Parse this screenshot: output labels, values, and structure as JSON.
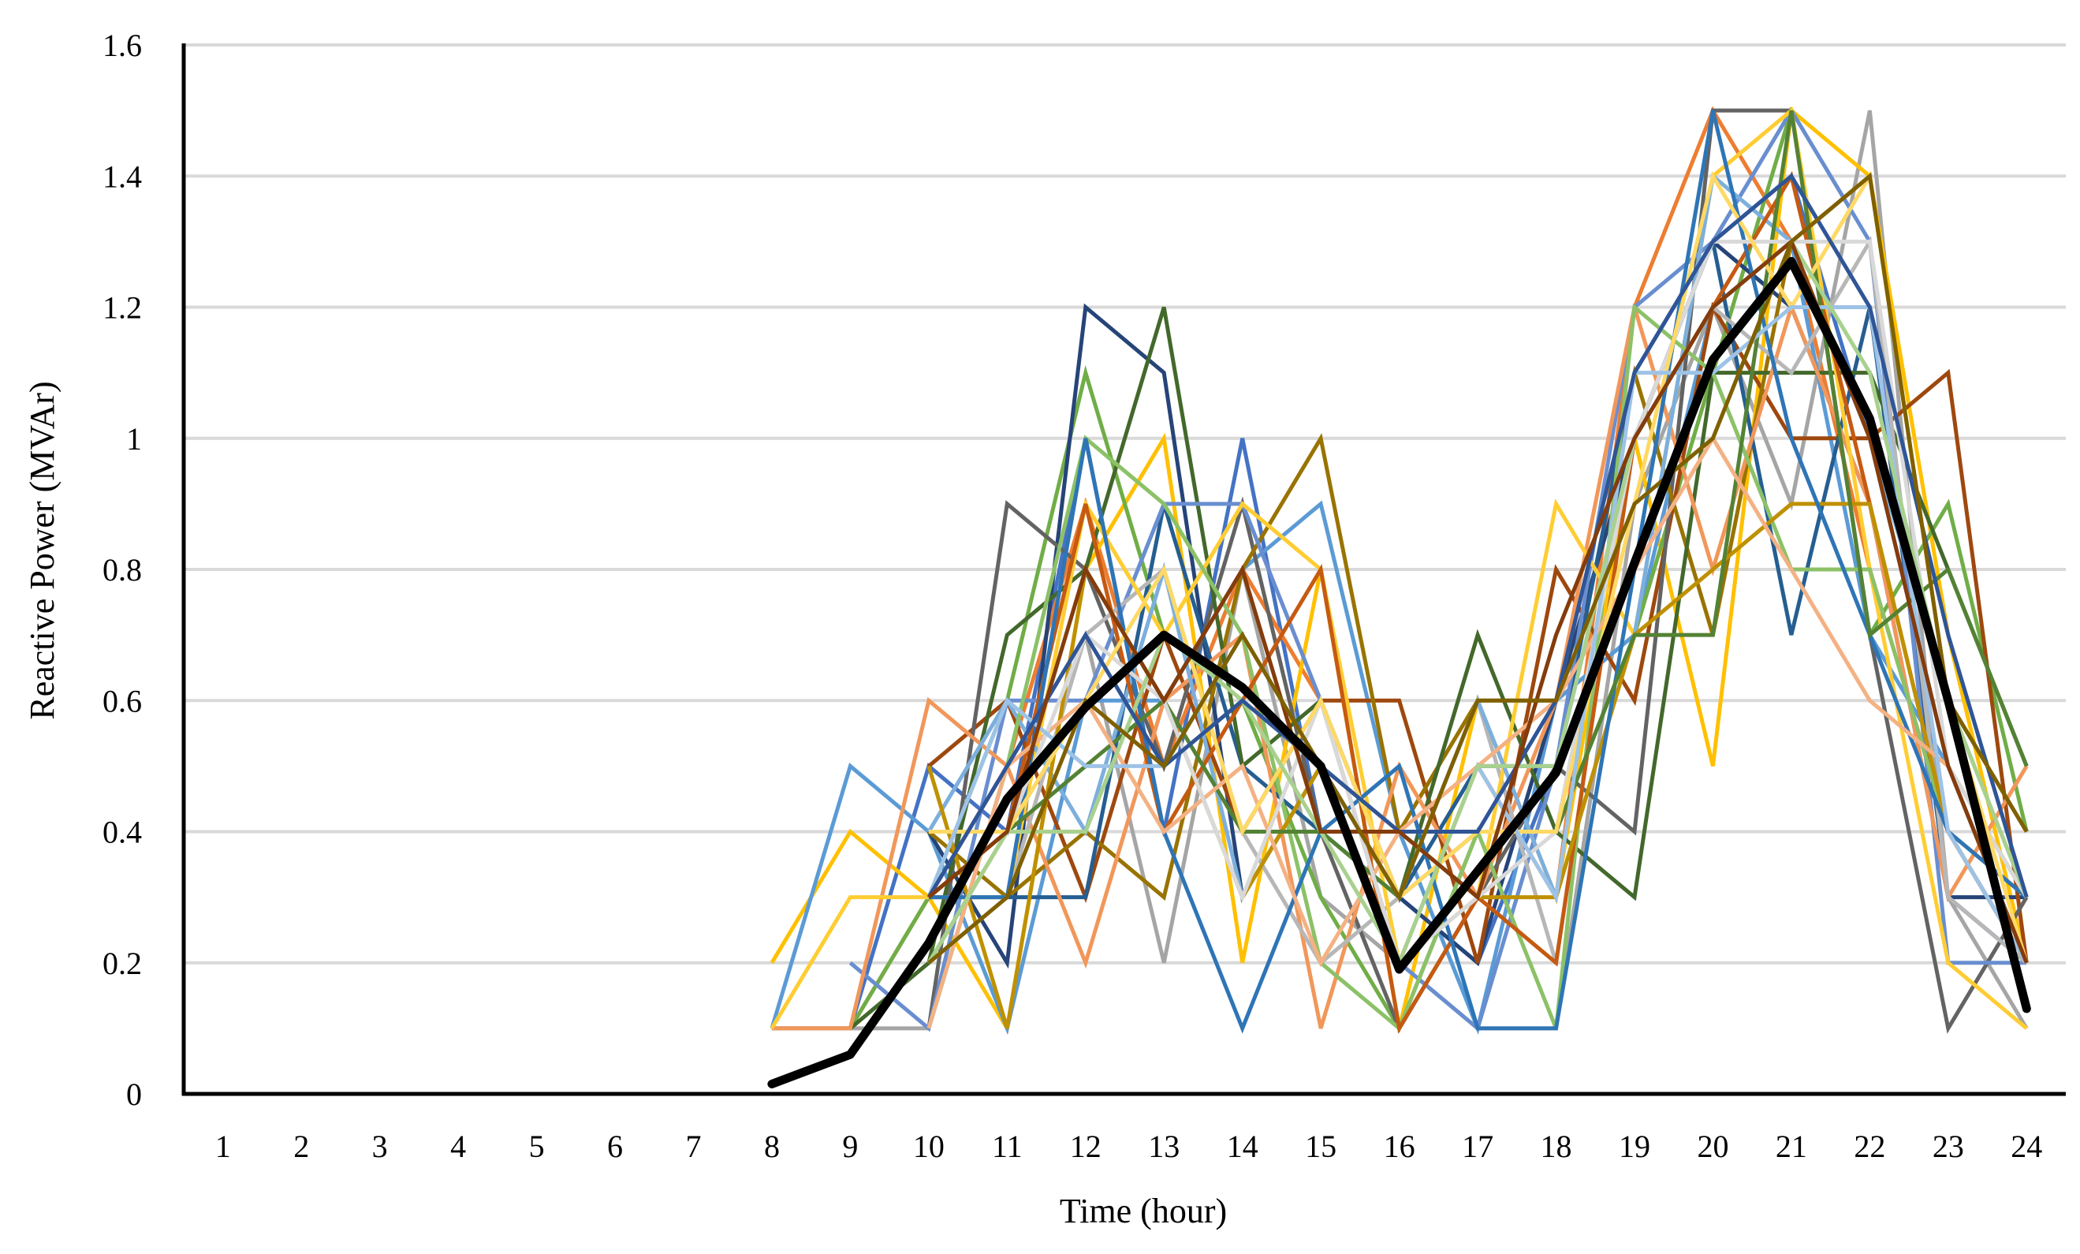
{
  "chart_data": {
    "type": "line",
    "title": "",
    "xlabel": "Time (hour)",
    "ylabel": "Reactive Power (MVAr)",
    "x": [
      1,
      2,
      3,
      4,
      5,
      6,
      7,
      8,
      9,
      10,
      11,
      12,
      13,
      14,
      15,
      16,
      17,
      18,
      19,
      20,
      21,
      22,
      23,
      24
    ],
    "x_tick_labels": [
      "1",
      "2",
      "3",
      "4",
      "5",
      "6",
      "7",
      "8",
      "9",
      "10",
      "11",
      "12",
      "13",
      "14",
      "15",
      "16",
      "17",
      "18",
      "19",
      "20",
      "21",
      "22",
      "23",
      "24"
    ],
    "ylim": [
      0,
      1.6
    ],
    "y_ticks": [
      0,
      0.2,
      0.4,
      0.6,
      0.8,
      1.0,
      1.2,
      1.4,
      1.6
    ],
    "y_tick_labels": [
      "0",
      "0.2",
      "0.4",
      "0.6",
      "0.8",
      "1",
      "1.2",
      "1.4",
      "1.6"
    ],
    "grid": "horizontal",
    "legend": "none",
    "highlight_series": {
      "color": "#000000",
      "values": [
        null,
        null,
        null,
        null,
        null,
        null,
        null,
        0.015,
        0.06,
        0.23,
        0.45,
        0.59,
        0.7,
        0.62,
        0.5,
        0.19,
        0.34,
        0.49,
        0.81,
        1.12,
        1.27,
        1.03,
        0.6,
        0.13
      ]
    },
    "series": [
      {
        "color": "#4472C4",
        "values": [
          null,
          null,
          null,
          null,
          null,
          null,
          null,
          0.1,
          0.1,
          0.5,
          0.4,
          1.0,
          0.4,
          1.0,
          0.4,
          0.3,
          0.2,
          0.5,
          1.0,
          1.3,
          1.4,
          1.0,
          0.5,
          0.3
        ]
      },
      {
        "color": "#ED7D31",
        "values": [
          null,
          null,
          null,
          null,
          null,
          null,
          null,
          0.1,
          0.1,
          0.3,
          0.5,
          0.9,
          0.5,
          0.8,
          0.6,
          0.2,
          0.5,
          0.3,
          1.2,
          1.5,
          1.3,
          0.8,
          0.4,
          0.2
        ]
      },
      {
        "color": "#A5A5A5",
        "values": [
          null,
          null,
          null,
          null,
          null,
          null,
          null,
          0.1,
          0.1,
          0.1,
          0.5,
          0.7,
          0.2,
          0.8,
          0.3,
          0.2,
          0.1,
          0.1,
          0.9,
          1.2,
          0.9,
          1.5,
          0.3,
          0.1
        ]
      },
      {
        "color": "#FFC000",
        "values": [
          null,
          null,
          null,
          null,
          null,
          null,
          null,
          0.2,
          0.4,
          0.3,
          0.1,
          0.8,
          1.0,
          0.2,
          0.8,
          0.1,
          0.6,
          0.3,
          1.0,
          0.5,
          1.5,
          1.4,
          0.7,
          0.2
        ]
      },
      {
        "color": "#5B9BD5",
        "values": [
          null,
          null,
          null,
          null,
          null,
          null,
          null,
          0.1,
          0.5,
          0.4,
          0.1,
          0.6,
          0.6,
          0.8,
          0.9,
          0.4,
          0.1,
          0.6,
          0.7,
          1.2,
          1.3,
          0.7,
          0.5,
          0.2
        ]
      },
      {
        "color": "#70AD47",
        "values": [
          null,
          null,
          null,
          null,
          null,
          null,
          null,
          null,
          0.1,
          0.3,
          0.6,
          1.1,
          0.7,
          0.6,
          0.3,
          0.1,
          0.4,
          0.4,
          0.7,
          1.1,
          1.5,
          0.7,
          0.9,
          0.4
        ]
      },
      {
        "color": "#264478",
        "values": [
          null,
          null,
          null,
          null,
          null,
          null,
          null,
          null,
          null,
          0.4,
          0.2,
          1.2,
          1.1,
          0.3,
          0.5,
          0.3,
          0.2,
          0.6,
          1.0,
          1.3,
          1.2,
          0.9,
          0.3,
          0.3
        ]
      },
      {
        "color": "#9E480E",
        "values": [
          null,
          null,
          null,
          null,
          null,
          null,
          null,
          null,
          null,
          0.5,
          0.6,
          0.3,
          0.7,
          0.4,
          0.6,
          0.6,
          0.2,
          0.8,
          0.6,
          1.2,
          1.0,
          1.0,
          1.1,
          0.2
        ]
      },
      {
        "color": "#636363",
        "values": [
          null,
          null,
          null,
          null,
          null,
          null,
          null,
          null,
          null,
          0.1,
          0.9,
          0.8,
          0.5,
          0.9,
          0.4,
          0.1,
          0.3,
          0.5,
          0.4,
          1.5,
          1.5,
          0.7,
          0.1,
          0.3
        ]
      },
      {
        "color": "#997300",
        "values": [
          null,
          null,
          null,
          null,
          null,
          null,
          null,
          null,
          null,
          0.4,
          0.3,
          0.4,
          0.3,
          0.8,
          1.0,
          0.4,
          0.6,
          0.6,
          1.1,
          0.7,
          1.3,
          1.4,
          0.6,
          0.4
        ]
      },
      {
        "color": "#255E91",
        "values": [
          null,
          null,
          null,
          null,
          null,
          null,
          null,
          null,
          null,
          0.3,
          0.3,
          0.3,
          0.9,
          0.5,
          0.4,
          0.3,
          0.5,
          0.5,
          1.1,
          1.3,
          0.7,
          1.2,
          0.3,
          0.2
        ]
      },
      {
        "color": "#43682B",
        "values": [
          null,
          null,
          null,
          null,
          null,
          null,
          null,
          null,
          0.1,
          0.2,
          0.7,
          0.8,
          1.2,
          0.5,
          0.6,
          0.3,
          0.7,
          0.4,
          0.3,
          1.1,
          1.1,
          1.1,
          0.8,
          0.5
        ]
      },
      {
        "color": "#698ED0",
        "values": [
          null,
          null,
          null,
          null,
          null,
          null,
          null,
          null,
          0.2,
          0.1,
          0.6,
          0.6,
          0.9,
          0.9,
          0.6,
          0.2,
          0.1,
          0.5,
          1.2,
          1.3,
          1.5,
          1.3,
          0.2,
          0.2
        ]
      },
      {
        "color": "#F1975A",
        "values": [
          null,
          null,
          null,
          null,
          null,
          null,
          null,
          0.1,
          0.1,
          0.6,
          0.5,
          0.2,
          0.6,
          0.7,
          0.1,
          0.5,
          0.3,
          0.6,
          1.2,
          0.8,
          1.2,
          0.9,
          0.3,
          0.5
        ]
      },
      {
        "color": "#B7B7B7",
        "values": [
          null,
          null,
          null,
          null,
          null,
          null,
          null,
          null,
          null,
          0.2,
          0.3,
          0.7,
          0.8,
          0.4,
          0.2,
          0.3,
          0.6,
          0.2,
          1.0,
          1.2,
          1.1,
          1.3,
          0.3,
          0.2
        ]
      },
      {
        "color": "#FFCD33",
        "values": [
          null,
          null,
          null,
          null,
          null,
          null,
          null,
          0.1,
          0.3,
          0.3,
          0.3,
          0.9,
          0.7,
          0.9,
          0.8,
          0.2,
          0.3,
          0.9,
          0.7,
          1.4,
          1.5,
          0.8,
          0.2,
          0.1
        ]
      },
      {
        "color": "#7CAFDD",
        "values": [
          null,
          null,
          null,
          null,
          null,
          null,
          null,
          null,
          null,
          0.4,
          0.6,
          0.4,
          0.8,
          0.3,
          0.5,
          0.3,
          0.6,
          0.3,
          0.7,
          1.4,
          1.3,
          1.0,
          0.6,
          0.3
        ]
      },
      {
        "color": "#8CC168",
        "values": [
          null,
          null,
          null,
          null,
          null,
          null,
          null,
          null,
          null,
          0.1,
          0.5,
          1.0,
          0.9,
          0.7,
          0.2,
          0.1,
          0.4,
          0.1,
          1.2,
          1.1,
          0.8,
          0.8,
          0.4,
          0.2
        ]
      },
      {
        "color": "#C55A11",
        "values": [
          null,
          null,
          null,
          null,
          null,
          null,
          null,
          null,
          null,
          0.3,
          0.4,
          0.9,
          0.4,
          0.6,
          0.8,
          0.1,
          0.3,
          0.2,
          1.0,
          1.2,
          1.4,
          0.9,
          0.4,
          0.2
        ]
      },
      {
        "color": "#BF9000",
        "values": [
          null,
          null,
          null,
          null,
          null,
          null,
          null,
          null,
          null,
          0.5,
          0.1,
          0.8,
          0.6,
          0.3,
          0.5,
          0.4,
          0.3,
          0.3,
          0.7,
          0.8,
          0.9,
          0.9,
          0.4,
          0.3
        ]
      },
      {
        "color": "#2E75B6",
        "values": [
          null,
          null,
          null,
          null,
          null,
          null,
          null,
          null,
          null,
          0.3,
          0.3,
          1.0,
          0.4,
          0.1,
          0.4,
          0.5,
          0.1,
          0.1,
          0.8,
          1.5,
          1.0,
          0.7,
          0.4,
          0.3
        ]
      },
      {
        "color": "#548235",
        "values": [
          null,
          null,
          null,
          null,
          null,
          null,
          null,
          null,
          null,
          0.2,
          0.4,
          0.5,
          0.6,
          0.4,
          0.4,
          0.3,
          0.4,
          0.4,
          0.7,
          0.7,
          1.5,
          0.7,
          0.8,
          0.5
        ]
      },
      {
        "color": "#F4B183",
        "values": [
          null,
          null,
          null,
          null,
          null,
          null,
          null,
          null,
          null,
          0.1,
          0.5,
          0.6,
          0.4,
          0.5,
          0.2,
          0.4,
          0.5,
          0.6,
          0.8,
          1.0,
          0.8,
          0.6,
          0.5,
          0.3
        ]
      },
      {
        "color": "#D9D9D9",
        "values": [
          null,
          null,
          null,
          null,
          null,
          null,
          null,
          null,
          null,
          0.2,
          0.4,
          0.7,
          0.6,
          0.3,
          0.6,
          0.2,
          0.3,
          0.4,
          1.0,
          1.3,
          1.3,
          1.3,
          0.5,
          0.3
        ]
      },
      {
        "color": "#FFD966",
        "values": [
          null,
          null,
          null,
          null,
          null,
          null,
          null,
          null,
          null,
          0.4,
          0.4,
          0.6,
          0.8,
          0.4,
          0.6,
          0.3,
          0.4,
          0.4,
          0.9,
          1.4,
          1.2,
          1.4,
          0.6,
          0.2
        ]
      },
      {
        "color": "#9DC3E6",
        "values": [
          null,
          null,
          null,
          null,
          null,
          null,
          null,
          null,
          null,
          0.3,
          0.6,
          0.5,
          0.5,
          0.7,
          0.5,
          0.2,
          0.5,
          0.3,
          1.1,
          1.1,
          1.2,
          1.2,
          0.4,
          0.2
        ]
      },
      {
        "color": "#A9D18E",
        "values": [
          null,
          null,
          null,
          null,
          null,
          null,
          null,
          null,
          null,
          0.2,
          0.4,
          0.4,
          0.7,
          0.6,
          0.4,
          0.2,
          0.5,
          0.5,
          1.0,
          1.2,
          1.3,
          1.1,
          0.6,
          0.3
        ]
      },
      {
        "color": "#2F5597",
        "values": [
          null,
          null,
          null,
          null,
          null,
          null,
          null,
          null,
          null,
          0.3,
          0.5,
          0.7,
          0.5,
          0.6,
          0.5,
          0.4,
          0.4,
          0.6,
          1.1,
          1.3,
          1.4,
          1.2,
          0.7,
          0.3
        ]
      },
      {
        "color": "#843C0C",
        "values": [
          null,
          null,
          null,
          null,
          null,
          null,
          null,
          null,
          null,
          0.3,
          0.4,
          0.8,
          0.6,
          0.8,
          0.4,
          0.4,
          0.3,
          0.7,
          1.0,
          1.2,
          1.3,
          1.0,
          0.5,
          0.2
        ]
      },
      {
        "color": "#7F6000",
        "values": [
          null,
          null,
          null,
          null,
          null,
          null,
          null,
          null,
          null,
          0.2,
          0.3,
          0.6,
          0.5,
          0.7,
          0.5,
          0.3,
          0.6,
          0.6,
          0.9,
          1.0,
          1.3,
          1.4,
          0.6,
          0.4
        ]
      }
    ]
  }
}
